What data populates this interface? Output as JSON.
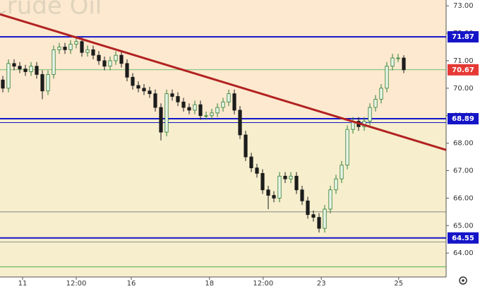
{
  "chart_data": {
    "type": "candlestick",
    "title": "Crude Oil",
    "up_color": "#2e7d32",
    "down_color": "#1c1c1c",
    "open": [
      70.3,
      70.0,
      70.9,
      70.8,
      70.7,
      70.6,
      70.8,
      70.5,
      69.9,
      70.5,
      71.4,
      71.5,
      71.4,
      71.6,
      71.7,
      71.3,
      71.4,
      71.2,
      71.0,
      70.8,
      71.0,
      71.2,
      70.9,
      70.4,
      70.1,
      70.0,
      69.9,
      69.8,
      69.3,
      68.4,
      69.8,
      69.7,
      69.5,
      69.3,
      69.2,
      69.4,
      69.0,
      69.0,
      69.1,
      69.3,
      69.5,
      69.8,
      69.2,
      68.3,
      67.5,
      67.1,
      66.9,
      66.3,
      66.1,
      66.0,
      66.8,
      66.7,
      66.8,
      66.3,
      65.9,
      65.4,
      65.3,
      64.9,
      65.6,
      66.3,
      66.7,
      67.2,
      68.5,
      68.8,
      68.6,
      68.8,
      69.3,
      69.6,
      70.0,
      70.8,
      71.1,
      71.1
    ],
    "high": [
      70.45,
      71.05,
      71.05,
      70.95,
      70.85,
      70.95,
      70.95,
      70.65,
      70.65,
      71.55,
      71.65,
      71.65,
      71.75,
      71.87,
      71.85,
      71.55,
      71.55,
      71.35,
      71.15,
      71.15,
      71.35,
      71.35,
      71.05,
      70.55,
      70.25,
      70.15,
      70.05,
      69.95,
      69.45,
      69.95,
      69.95,
      69.85,
      69.65,
      69.45,
      69.55,
      69.55,
      69.15,
      69.25,
      69.45,
      69.65,
      69.95,
      69.95,
      69.35,
      68.45,
      67.65,
      67.25,
      67.05,
      66.45,
      66.25,
      66.95,
      66.95,
      66.95,
      66.95,
      66.45,
      66.05,
      65.55,
      65.45,
      65.75,
      66.45,
      66.85,
      67.35,
      68.65,
      68.95,
      68.95,
      68.95,
      69.45,
      69.75,
      70.15,
      70.95,
      71.25,
      71.25,
      71.2
    ],
    "low": [
      69.85,
      69.85,
      70.65,
      70.55,
      70.45,
      70.45,
      70.35,
      69.6,
      69.75,
      70.35,
      71.25,
      71.25,
      71.25,
      71.45,
      71.15,
      71.15,
      71.05,
      70.85,
      70.65,
      70.65,
      70.85,
      70.75,
      70.25,
      69.95,
      69.85,
      69.75,
      69.65,
      69.15,
      68.1,
      68.25,
      69.55,
      69.35,
      69.15,
      69.05,
      69.05,
      68.85,
      68.85,
      68.85,
      68.95,
      69.15,
      69.35,
      69.05,
      68.15,
      67.35,
      66.95,
      66.75,
      66.15,
      65.6,
      65.85,
      65.85,
      66.55,
      66.55,
      66.15,
      65.75,
      65.25,
      65.15,
      64.75,
      64.75,
      65.45,
      66.15,
      66.55,
      67.05,
      68.35,
      68.45,
      68.45,
      68.65,
      69.15,
      69.45,
      69.85,
      70.65,
      70.95,
      70.55
    ],
    "close": [
      70.0,
      70.9,
      70.8,
      70.7,
      70.6,
      70.8,
      70.5,
      69.9,
      70.5,
      71.4,
      71.5,
      71.4,
      71.6,
      71.7,
      71.3,
      71.4,
      71.2,
      71.0,
      70.8,
      71.0,
      71.2,
      70.9,
      70.4,
      70.1,
      70.0,
      69.9,
      69.8,
      69.3,
      68.4,
      69.8,
      69.7,
      69.5,
      69.3,
      69.2,
      69.4,
      69.0,
      69.0,
      69.1,
      69.3,
      69.5,
      69.8,
      69.2,
      68.3,
      67.5,
      67.1,
      66.9,
      66.3,
      66.1,
      66.0,
      66.8,
      66.7,
      66.8,
      66.3,
      65.9,
      65.4,
      65.3,
      64.9,
      65.6,
      66.3,
      66.7,
      67.2,
      68.5,
      68.8,
      68.6,
      68.8,
      69.3,
      69.6,
      70.0,
      70.8,
      71.1,
      71.1,
      70.67
    ],
    "xlim": [
      -0.5,
      78.5
    ],
    "xticks": [
      {
        "value": 3.5,
        "label": "11"
      },
      {
        "value": 13,
        "label": "12:00"
      },
      {
        "value": 22.75,
        "label": "16"
      },
      {
        "value": 36.6,
        "label": "18"
      },
      {
        "value": 46.1,
        "label": "12:00"
      },
      {
        "value": 56.4,
        "label": "23"
      },
      {
        "value": 70.1,
        "label": "25"
      }
    ],
    "ylim": [
      63.13,
      73.21
    ],
    "yticks": [
      {
        "value": 73,
        "label": "73.00"
      },
      {
        "value": 72,
        "label": "72.00"
      },
      {
        "value": 71,
        "label": "71.00"
      },
      {
        "value": 70,
        "label": "70.00"
      },
      {
        "value": 69,
        "label": "69.00"
      },
      {
        "value": 68,
        "label": "68.00"
      },
      {
        "value": 67,
        "label": "67.00"
      },
      {
        "value": 66,
        "label": "66.00"
      },
      {
        "value": 65,
        "label": "65.00"
      },
      {
        "value": 64,
        "label": "64.00"
      }
    ],
    "hlines": [
      {
        "value": 71.87,
        "color": "#1515c8",
        "width": 2,
        "labeled": true
      },
      {
        "value": 70.67,
        "color": "#4caf50",
        "width": 0.8,
        "labeled": true,
        "label_color": "#e53935"
      },
      {
        "value": 68.89,
        "color": "#1515c8",
        "width": 2,
        "labeled": true
      },
      {
        "value": 68.75,
        "color": "#1515c8",
        "width": 1,
        "labeled": false
      },
      {
        "value": 65.5,
        "color": "#777777",
        "width": 0.8,
        "labeled": false
      },
      {
        "value": 64.55,
        "color": "#1515c8",
        "width": 2,
        "labeled": true
      },
      {
        "value": 64.4,
        "color": "#777777",
        "width": 0.8,
        "labeled": false
      },
      {
        "value": 63.5,
        "color": "#4caf50",
        "width": 1,
        "labeled": false
      }
    ],
    "trendline": {
      "x": [
        -0.5,
        78.5
      ],
      "y": [
        72.69,
        67.755
      ],
      "color": "#b22222"
    }
  }
}
